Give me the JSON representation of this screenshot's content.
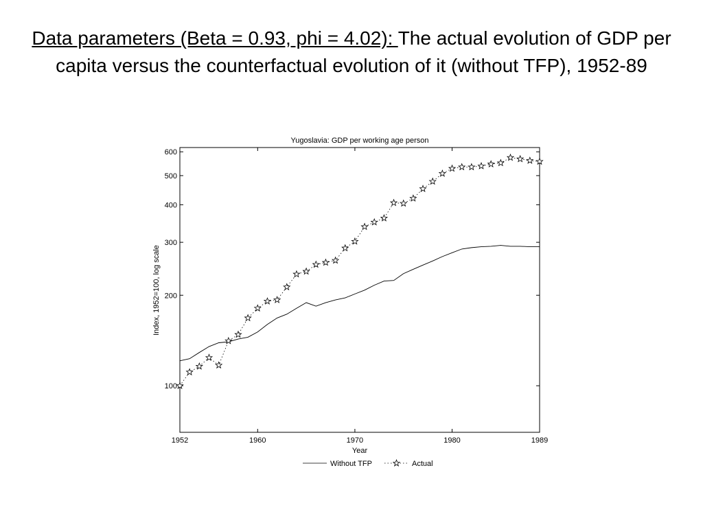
{
  "slide": {
    "title_underlined": "Data parameters (Beta = 0.93, phi = 4.02): ",
    "title_rest": "The actual evolution of GDP per capita versus the counterfactual evolution of it (without TFP), 1952-89"
  },
  "chart_data": {
    "type": "line",
    "title": "Yugoslavia: GDP per working age person",
    "xlabel": "Year",
    "ylabel": "Index, 1952=100, log scale",
    "xlim": [
      1952,
      1989
    ],
    "ylim": [
      70,
      620
    ],
    "yscale": "log",
    "grid": false,
    "legend_position": "bottom-center",
    "x_ticks": [
      1952,
      1960,
      1970,
      1980,
      1989
    ],
    "y_ticks": [
      100,
      200,
      300,
      400,
      500,
      600
    ],
    "x": [
      1952,
      1953,
      1954,
      1955,
      1956,
      1957,
      1958,
      1959,
      1960,
      1961,
      1962,
      1963,
      1964,
      1965,
      1966,
      1967,
      1968,
      1969,
      1970,
      1971,
      1972,
      1973,
      1974,
      1975,
      1976,
      1977,
      1978,
      1979,
      1980,
      1981,
      1982,
      1983,
      1984,
      1985,
      1986,
      1987,
      1988,
      1989
    ],
    "series": [
      {
        "name": "Without TFP",
        "style": "solid",
        "color": "#000000",
        "values": [
          121,
          123,
          129,
          135,
          139,
          140,
          143,
          145,
          151,
          160,
          168,
          173,
          181,
          189,
          184,
          189,
          193,
          196,
          202,
          208,
          216,
          223,
          224,
          236,
          244,
          252,
          260,
          269,
          277,
          285,
          288,
          290,
          291,
          293,
          291,
          291,
          290,
          290
        ]
      },
      {
        "name": "Actual",
        "style": "dotted-star",
        "color": "#000000",
        "values": [
          100,
          111,
          116,
          124,
          117,
          141,
          148,
          168,
          181,
          191,
          193,
          213,
          235,
          240,
          253,
          257,
          261,
          287,
          302,
          338,
          350,
          361,
          406,
          404,
          420,
          452,
          478,
          508,
          528,
          534,
          534,
          538,
          546,
          551,
          574,
          568,
          561,
          557
        ]
      }
    ]
  }
}
